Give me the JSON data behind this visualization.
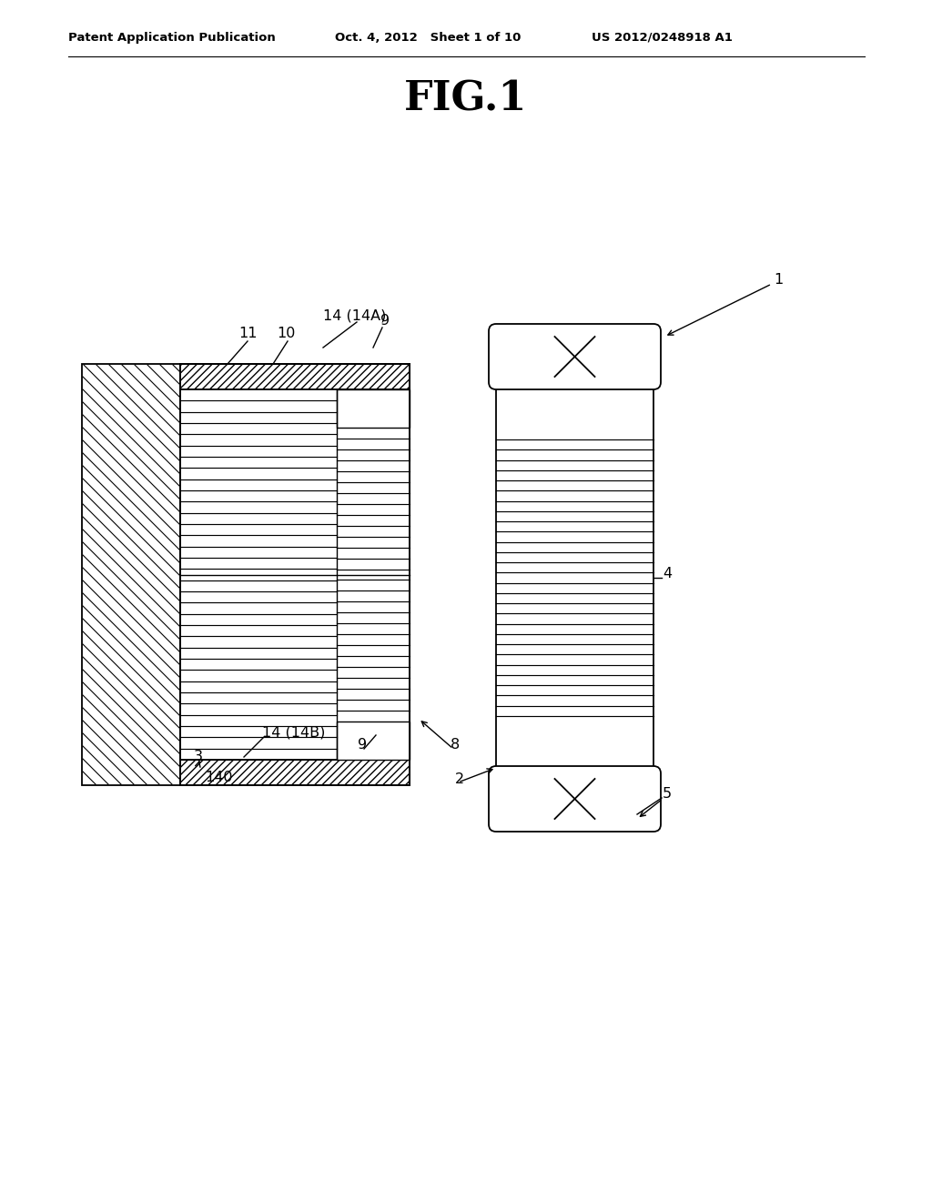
{
  "title": "FIG.1",
  "header_left": "Patent Application Publication",
  "header_mid": "Oct. 4, 2012   Sheet 1 of 10",
  "header_right": "US 2012/0248918 A1",
  "bg_color": "#ffffff",
  "line_color": "#000000"
}
